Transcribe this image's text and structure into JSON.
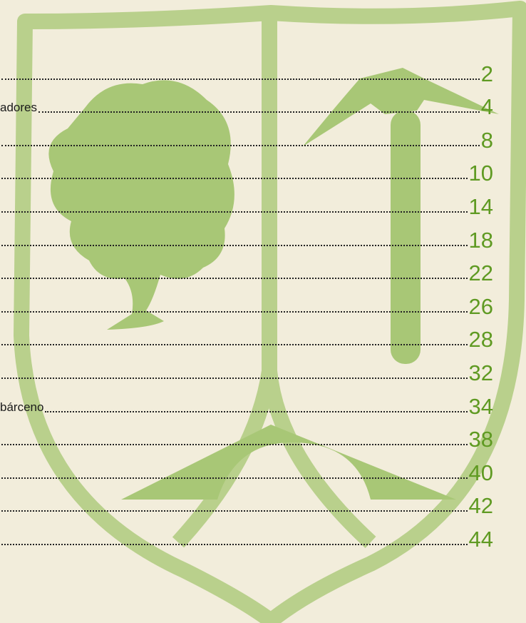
{
  "toc": {
    "entries": [
      {
        "page": 2
      },
      {
        "title": "adores",
        "page": 4
      },
      {
        "page": 8
      },
      {
        "page": 10
      },
      {
        "page": 14
      },
      {
        "page": 18
      },
      {
        "page": 22
      },
      {
        "page": 26
      },
      {
        "page": 28
      },
      {
        "page": 32
      },
      {
        "title": "bárceno",
        "page": 34
      },
      {
        "page": 38
      },
      {
        "page": 40
      },
      {
        "page": 42
      },
      {
        "page": 44
      }
    ]
  }
}
